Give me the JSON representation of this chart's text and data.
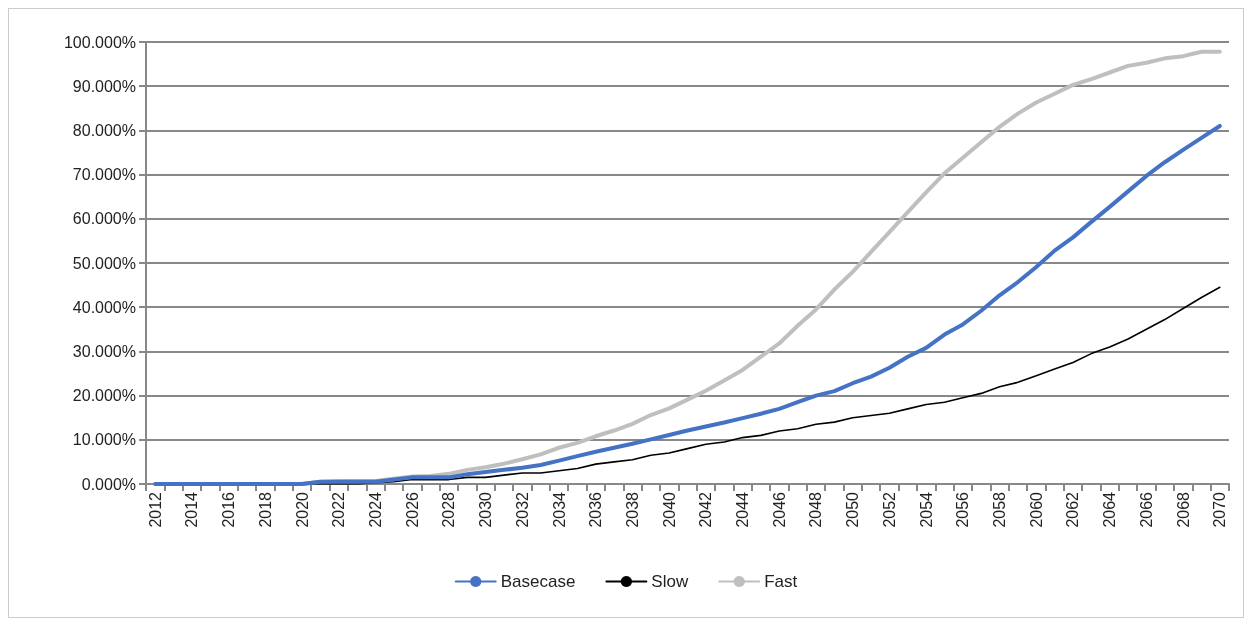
{
  "chart_data": {
    "type": "line",
    "categories": [
      "2012",
      null,
      "2014",
      null,
      "2016",
      null,
      "2018",
      null,
      "2020",
      null,
      "2022",
      null,
      "2024",
      null,
      "2026",
      null,
      "2028",
      null,
      "2030",
      null,
      "2032",
      null,
      "2034",
      null,
      "2036",
      null,
      "2038",
      null,
      "2040",
      null,
      "2042",
      null,
      "2044",
      null,
      "2046",
      null,
      "2048",
      null,
      "2050",
      null,
      "2052",
      null,
      "2054",
      null,
      "2056",
      null,
      "2058",
      null,
      "2060",
      null,
      "2062",
      null,
      "2064",
      null,
      "2066",
      null,
      "2068",
      null,
      "2070"
    ],
    "series": [
      {
        "name": "Basecase",
        "color": "#4472c4",
        "values": [
          0,
          0,
          0,
          0,
          0,
          0,
          0,
          0,
          0,
          0.5,
          0.5,
          0.5,
          0.5,
          1,
          1.5,
          1.5,
          1.5,
          2.2,
          2.7,
          3.2,
          3.7,
          4.3,
          5.3,
          6.3,
          7.3,
          8.2,
          9.1,
          10.1,
          11.1,
          12.1,
          13,
          13.9,
          14.9,
          15.9,
          17,
          18.5,
          20,
          21,
          22.8,
          24.3,
          26.3,
          28.8,
          30.8,
          33.8,
          36.1,
          39.2,
          42.7,
          45.7,
          49.1,
          52.8,
          55.8,
          59.3,
          62.7,
          66.2,
          69.7,
          72.8,
          75.6,
          78.3,
          81
        ]
      },
      {
        "name": "Slow",
        "color": "#000000",
        "values": [
          0,
          0,
          0,
          0,
          0,
          0,
          0,
          0,
          0,
          0,
          0,
          0,
          0.3,
          0.5,
          1,
          1,
          1,
          1.5,
          1.5,
          2,
          2.5,
          2.5,
          3,
          3.5,
          4.5,
          5,
          5.5,
          6.5,
          7,
          8,
          9,
          9.5,
          10.5,
          11,
          12,
          12.5,
          13.5,
          14,
          15,
          15.5,
          16,
          17,
          18,
          18.5,
          19.5,
          20.5,
          22,
          23,
          24.5,
          26,
          27.5,
          29.5,
          31,
          32.8,
          35,
          37.2,
          39.7,
          42.2,
          44.5
        ]
      },
      {
        "name": "Fast",
        "color": "#bfbfbf",
        "values": [
          0,
          0,
          0,
          0,
          0,
          0,
          0,
          0,
          0,
          0.5,
          0.7,
          0.7,
          0.7,
          1.2,
          1.7,
          1.8,
          2.3,
          3.2,
          3.8,
          4.6,
          5.6,
          6.7,
          8.2,
          9.3,
          10.8,
          12.1,
          13.6,
          15.6,
          17.1,
          19.1,
          21.1,
          23.4,
          25.8,
          28.8,
          31.8,
          35.8,
          39.5,
          44,
          48,
          52.5,
          57,
          61.5,
          66,
          70.3,
          73.8,
          77.3,
          80.8,
          83.8,
          86.3,
          88.3,
          90.3,
          91.6,
          93.1,
          94.6,
          95.3,
          96.3,
          96.8,
          97.8,
          97.8
        ]
      }
    ],
    "ylim": [
      0,
      100
    ],
    "yticks": [
      {
        "value": 0,
        "label": "0.000%"
      },
      {
        "value": 10,
        "label": "10.000%"
      },
      {
        "value": 20,
        "label": "20.000%"
      },
      {
        "value": 30,
        "label": "30.000%"
      },
      {
        "value": 40,
        "label": "40.000%"
      },
      {
        "value": 50,
        "label": "50.000%"
      },
      {
        "value": 60,
        "label": "60.000%"
      },
      {
        "value": 70,
        "label": "70.000%"
      },
      {
        "value": 80,
        "label": "80.000%"
      },
      {
        "value": 90,
        "label": "90.000%"
      },
      {
        "value": 100,
        "label": "100.000%"
      }
    ],
    "grid": "y",
    "legend": "bottom",
    "marker": "none"
  }
}
